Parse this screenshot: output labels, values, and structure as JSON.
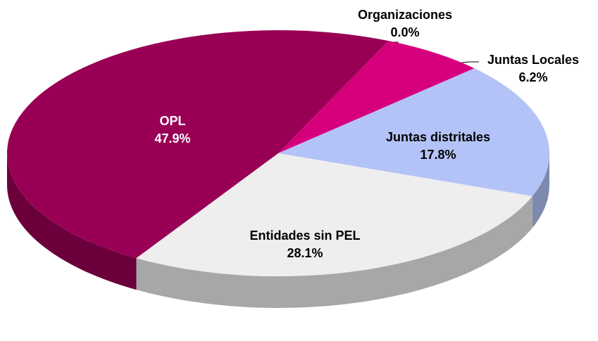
{
  "chart_data": {
    "type": "pie",
    "categories": [
      "Organizaciones",
      "Juntas Locales",
      "Juntas distritales",
      "Entidades sin PEL",
      "OPL"
    ],
    "values": [
      0.0,
      6.2,
      17.8,
      28.1,
      47.9
    ],
    "value_labels": [
      "0.0%",
      "6.2%",
      "17.8%",
      "28.1%",
      "47.9%"
    ],
    "colors": [
      "#7f7f7f",
      "#d6007d",
      "#b3c3f7",
      "#eeeeee",
      "#990055"
    ]
  }
}
